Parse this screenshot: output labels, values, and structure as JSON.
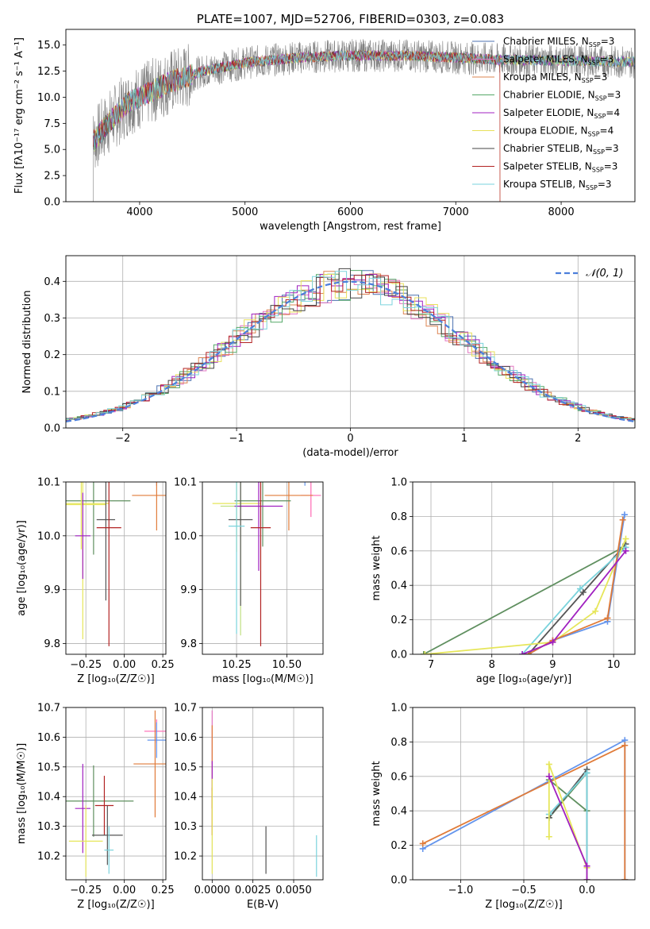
{
  "chart_data": [
    {
      "id": "spectrum",
      "type": "line",
      "title": "PLATE=1007, MJD=52706, FIBERID=0303, z=0.083",
      "xlabel": "wavelength [Angstrom, rest frame]",
      "ylabel": "Flux [fλ10⁻¹⁷ erg cm⁻² s⁻¹ A⁻¹]",
      "xlim": [
        3300,
        8700
      ],
      "ylim": [
        0,
        16.5
      ],
      "xticks": [
        4000,
        5000,
        6000,
        7000,
        8000
      ],
      "yticks": [
        0.0,
        2.5,
        5.0,
        7.5,
        10.0,
        12.5,
        15.0
      ],
      "grid": false,
      "legend_position": "top-right",
      "legend": [
        {
          "label": "Chabrier MILES, N",
          "sub": "SSP",
          "tail": "=3",
          "color": "#4c72b0"
        },
        {
          "label": "Salpeter MILES, N",
          "sub": "SSP",
          "tail": "=3",
          "color": "#e377c2"
        },
        {
          "label": "Kroupa MILES, N",
          "sub": "SSP",
          "tail": "=3",
          "color": "#dd8452"
        },
        {
          "label": "Chabrier ELODIE, N",
          "sub": "SSP",
          "tail": "=3",
          "color": "#55a868"
        },
        {
          "label": "Salpeter ELODIE, N",
          "sub": "SSP",
          "tail": "=4",
          "color": "#a020c0"
        },
        {
          "label": "Kroupa ELODIE, N",
          "sub": "SSP",
          "tail": "=4",
          "color": "#e8e05a"
        },
        {
          "label": "Chabrier STELIB, N",
          "sub": "SSP",
          "tail": "=3",
          "color": "#444444"
        },
        {
          "label": "Salpeter STELIB, N",
          "sub": "SSP",
          "tail": "=3",
          "color": "#b22222"
        },
        {
          "label": "Kroupa STELIB, N",
          "sub": "SSP",
          "tail": "=3",
          "color": "#7ad3dc"
        }
      ],
      "data_trend": {
        "x": [
          3540,
          3700,
          3900,
          4100,
          4300,
          4600,
          5000,
          5500,
          6000,
          6500,
          7000,
          7400,
          8000,
          8500
        ],
        "y": [
          5.5,
          7.5,
          9.5,
          10.5,
          11.5,
          12.5,
          13.3,
          13.8,
          14.0,
          14.0,
          13.8,
          13.6,
          13.5,
          13.4
        ]
      }
    },
    {
      "id": "residuals",
      "type": "line",
      "xlabel": "(data-model)/error",
      "ylabel": "Normed distribution",
      "xlim": [
        -2.5,
        2.5
      ],
      "ylim": [
        0,
        0.47
      ],
      "xticks": [
        -2,
        -1,
        0,
        1,
        2
      ],
      "xticklabels": [
        "−2",
        "−1",
        "0",
        "1",
        "2"
      ],
      "yticks": [
        0.0,
        0.1,
        0.2,
        0.3,
        0.4
      ],
      "grid": true,
      "legend_position": "top-right",
      "legend_label": "𝒩(0, 1)",
      "gauss_color": "#4c7fdb"
    },
    {
      "id": "age_vs_Z",
      "type": "scatter",
      "xlabel": "Z [log₁₀(Z/Z☉)]",
      "ylabel": "age  [log₁₀(age/yr)]",
      "xlim": [
        -0.38,
        0.27
      ],
      "ylim": [
        9.78,
        10.1
      ],
      "xticks": [
        -0.25,
        0.0,
        0.25
      ],
      "xticklabels": [
        "−0.25",
        "0.00",
        "0.25"
      ],
      "yticks": [
        9.8,
        9.9,
        10.0,
        10.1
      ],
      "grid": true,
      "points": [
        {
          "x": 0.21,
          "y": 10.135,
          "xe": 0.06,
          "ye": 0.042,
          "color": "#6495ed"
        },
        {
          "x": 0.22,
          "y": 10.138,
          "xe": 0.04,
          "ye": 0.03,
          "color": "#ff69b4"
        },
        {
          "x": 0.21,
          "y": 10.075,
          "xe": 0.16,
          "ye": 0.065,
          "color": "#e07b39"
        },
        {
          "x": -0.2,
          "y": 10.065,
          "xe": 0.24,
          "ye": 0.1,
          "color": "#5f8f5f"
        },
        {
          "x": -0.28,
          "y": 10.06,
          "xe": 0.18,
          "ye": 0.085,
          "color": "#e6e65a"
        },
        {
          "x": -0.27,
          "y": 10.058,
          "xe": 0.15,
          "ye": 0.25,
          "color": "#e6e65a"
        },
        {
          "x": -0.27,
          "y": 10.0,
          "xe": 0.05,
          "ye": 0.08,
          "color": "#a020c0"
        },
        {
          "x": -0.12,
          "y": 10.03,
          "xe": 0.06,
          "ye": 0.15,
          "color": "#555555"
        },
        {
          "x": -0.1,
          "y": 10.015,
          "xe": 0.08,
          "ye": 0.22,
          "color": "#b22222"
        }
      ]
    },
    {
      "id": "age_vs_mass",
      "type": "scatter",
      "xlabel": "mass [log₁₀(M/M☉)]",
      "ylabel": "",
      "xlim": [
        10.08,
        10.68
      ],
      "ylim": [
        9.78,
        10.1
      ],
      "xticks": [
        10.25,
        10.5
      ],
      "xticklabels": [
        "10.25",
        "10.50"
      ],
      "yticks": [
        9.8,
        9.9,
        10.0,
        10.1
      ],
      "grid": true,
      "points": [
        {
          "x": 10.59,
          "y": 10.135,
          "xe": 0.05,
          "ye": 0.042,
          "color": "#6495ed"
        },
        {
          "x": 10.62,
          "y": 10.075,
          "xe": 0.05,
          "ye": 0.04,
          "color": "#ff69b4"
        },
        {
          "x": 10.51,
          "y": 10.075,
          "xe": 0.12,
          "ye": 0.065,
          "color": "#e07b39"
        },
        {
          "x": 10.38,
          "y": 10.065,
          "xe": 0.14,
          "ye": 0.085,
          "color": "#5f8f5f"
        },
        {
          "x": 10.25,
          "y": 10.06,
          "xe": 0.12,
          "ye": 0.09,
          "color": "#e6e65a"
        },
        {
          "x": 10.27,
          "y": 10.055,
          "xe": 0.1,
          "ye": 0.24,
          "color": "#c0e080"
        },
        {
          "x": 10.36,
          "y": 10.055,
          "xe": 0.12,
          "ye": 0.12,
          "color": "#a020c0"
        },
        {
          "x": 10.27,
          "y": 10.03,
          "xe": 0.06,
          "ye": 0.16,
          "color": "#555555"
        },
        {
          "x": 10.37,
          "y": 10.015,
          "xe": 0.05,
          "ye": 0.22,
          "color": "#b22222"
        },
        {
          "x": 10.25,
          "y": 10.018,
          "xe": 0.04,
          "ye": 0.2,
          "color": "#7ad3dc"
        }
      ]
    },
    {
      "id": "mass_weight_vs_age",
      "type": "line",
      "xlabel": "age  [log₁₀(age/yr)]",
      "ylabel": "mass weight",
      "xlim": [
        6.7,
        10.35
      ],
      "ylim": [
        0,
        1.0
      ],
      "xticks": [
        7,
        8,
        9,
        10
      ],
      "yticks": [
        0.0,
        0.2,
        0.4,
        0.6,
        0.8,
        1.0
      ],
      "grid": true,
      "series": [
        {
          "color": "#5f8f5f",
          "x": [
            6.88,
            10.15
          ],
          "y": [
            0.0,
            0.62
          ]
        },
        {
          "color": "#555555",
          "x": [
            8.6,
            9.5,
            10.2
          ],
          "y": [
            0.0,
            0.36,
            0.64
          ]
        },
        {
          "color": "#7ad3dc",
          "x": [
            8.5,
            9.45,
            10.2
          ],
          "y": [
            0.0,
            0.38,
            0.62
          ]
        },
        {
          "color": "#e6e65a",
          "x": [
            6.9,
            9.0,
            9.7,
            10.2
          ],
          "y": [
            0.0,
            0.07,
            0.25,
            0.67
          ]
        },
        {
          "color": "#6495ed",
          "x": [
            8.6,
            9.0,
            9.9,
            10.18
          ],
          "y": [
            0.0,
            0.08,
            0.19,
            0.81
          ]
        },
        {
          "color": "#e07b39",
          "x": [
            8.6,
            9.0,
            9.9,
            10.15
          ],
          "y": [
            0.0,
            0.08,
            0.21,
            0.78
          ]
        },
        {
          "color": "#a020c0",
          "x": [
            8.5,
            9.0,
            10.2
          ],
          "y": [
            0.0,
            0.07,
            0.6
          ]
        }
      ]
    },
    {
      "id": "mass_vs_Z",
      "type": "scatter",
      "xlabel": "Z [log₁₀(Z/Z☉)]",
      "ylabel": "mass [log₁₀(M/M☉)]",
      "xlim": [
        -0.38,
        0.27
      ],
      "ylim": [
        10.12,
        10.7
      ],
      "xticks": [
        -0.25,
        0.0,
        0.25
      ],
      "xticklabels": [
        "−0.25",
        "0.00",
        "0.25"
      ],
      "yticks": [
        10.2,
        10.3,
        10.4,
        10.5,
        10.6,
        10.7
      ],
      "grid": true,
      "points": [
        {
          "x": 0.21,
          "y": 10.62,
          "xe": 0.08,
          "ye": 0.04,
          "color": "#ff69b4"
        },
        {
          "x": 0.21,
          "y": 10.59,
          "xe": 0.06,
          "ye": 0.06,
          "color": "#6495ed"
        },
        {
          "x": 0.2,
          "y": 10.51,
          "xe": 0.14,
          "ye": 0.18,
          "color": "#e07b39"
        },
        {
          "x": -0.2,
          "y": 10.385,
          "xe": 0.26,
          "ye": 0.12,
          "color": "#5f8f5f"
        },
        {
          "x": -0.27,
          "y": 10.36,
          "xe": 0.05,
          "ye": 0.15,
          "color": "#a020c0"
        },
        {
          "x": -0.13,
          "y": 10.37,
          "xe": 0.06,
          "ye": 0.1,
          "color": "#b22222"
        },
        {
          "x": -0.11,
          "y": 10.27,
          "xe": 0.1,
          "ye": 0.1,
          "color": "#555555"
        },
        {
          "x": -0.25,
          "y": 10.25,
          "xe": 0.11,
          "ye": 0.12,
          "color": "#e6e65a"
        },
        {
          "x": -0.1,
          "y": 10.22,
          "xe": 0.03,
          "ye": 0.08,
          "color": "#7ad3dc"
        }
      ]
    },
    {
      "id": "mass_vs_ebv",
      "type": "scatter",
      "xlabel": "E(B-V)",
      "ylabel": "",
      "xlim": [
        -0.0006,
        0.0068
      ],
      "ylim": [
        10.12,
        10.7
      ],
      "xticks": [
        0.0,
        0.0025,
        0.005
      ],
      "xticklabels": [
        "0.0000",
        "0.0025",
        "0.0050"
      ],
      "yticks": [
        10.2,
        10.3,
        10.4,
        10.5,
        10.6,
        10.7
      ],
      "grid": true,
      "points": [
        {
          "x": 0.0,
          "y": 10.6,
          "xe": 0,
          "ye": 0.09,
          "color": "#e377c2"
        },
        {
          "x": 0.0,
          "y": 10.5,
          "xe": 0,
          "ye": 0.14,
          "color": "#e07b39"
        },
        {
          "x": 0.0,
          "y": 10.47,
          "xe": 0,
          "ye": 0.05,
          "color": "#a020c0"
        },
        {
          "x": 0.0,
          "y": 10.35,
          "xe": 0,
          "ye": 0.08,
          "color": "#b22222"
        },
        {
          "x": 0.0,
          "y": 10.3,
          "xe": 0,
          "ye": 0.16,
          "color": "#e6e65a"
        },
        {
          "x": 0.0033,
          "y": 10.22,
          "xe": 0,
          "ye": 0.08,
          "color": "#555555"
        },
        {
          "x": 0.0064,
          "y": 10.2,
          "xe": 0,
          "ye": 0.07,
          "color": "#7ad3dc"
        }
      ]
    },
    {
      "id": "mass_weight_vs_Z",
      "type": "line",
      "xlabel": "Z [log₁₀(Z/Z☉)]",
      "ylabel": "mass weight",
      "xlim": [
        -1.38,
        0.38
      ],
      "ylim": [
        0,
        1.0
      ],
      "xticks": [
        -1.0,
        -0.5,
        0.0
      ],
      "xticklabels": [
        "−1.0",
        "−0.5",
        "0.0"
      ],
      "yticks": [
        0.0,
        0.2,
        0.4,
        0.6,
        0.8,
        1.0
      ],
      "grid": true,
      "series": [
        {
          "color": "#6495ed",
          "x": [
            -1.3,
            0.3,
            0.3
          ],
          "y": [
            0.18,
            0.81,
            0.0
          ]
        },
        {
          "color": "#e07b39",
          "x": [
            -1.3,
            0.3,
            0.3
          ],
          "y": [
            0.21,
            0.78,
            0.0
          ]
        },
        {
          "color": "#5f8f5f",
          "x": [
            -0.3,
            0.0,
            0.0,
            -0.3
          ],
          "y": [
            0.58,
            0.4,
            0.62,
            0.36
          ]
        },
        {
          "color": "#555555",
          "x": [
            -0.3,
            0.0,
            0.0
          ],
          "y": [
            0.36,
            0.64,
            0.0
          ]
        },
        {
          "color": "#7ad3dc",
          "x": [
            -0.3,
            0.0,
            0.0
          ],
          "y": [
            0.38,
            0.62,
            0.0
          ]
        },
        {
          "color": "#e6e65a",
          "x": [
            -0.3,
            -0.3,
            0.0,
            0.0
          ],
          "y": [
            0.25,
            0.67,
            0.07,
            0.0
          ]
        },
        {
          "color": "#a020c0",
          "x": [
            -0.3,
            0.0,
            0.0
          ],
          "y": [
            0.6,
            0.08,
            0.0
          ]
        }
      ]
    }
  ]
}
